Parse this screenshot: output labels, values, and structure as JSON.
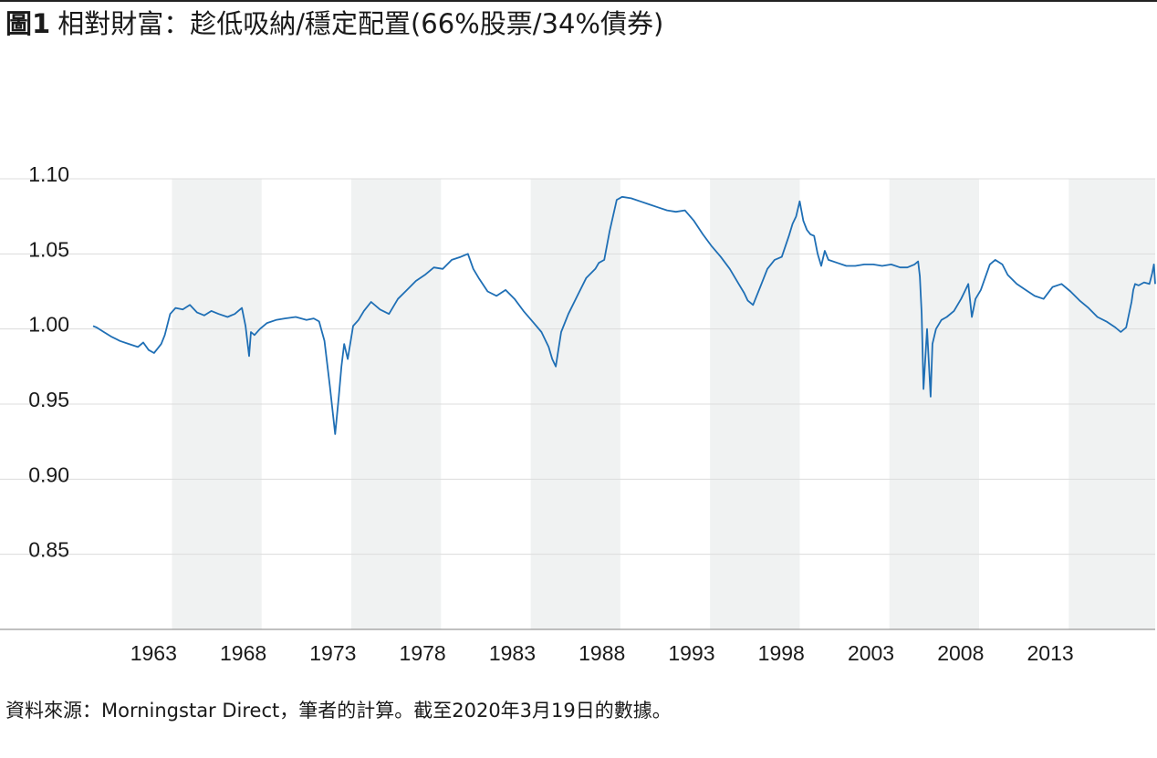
{
  "header": {
    "figure_label": "圖1",
    "title": "相對財富：趁低吸納/穩定配置(66%股票/34%債券)"
  },
  "footer": {
    "source": "資料來源：Morningstar Direct，筆者的計算。截至2020年3月19日的數據。"
  },
  "colors": {
    "line": "#1f6fb5",
    "shade": "#f0f2f2",
    "grid": "#dcdcdc",
    "axis": "#9a9a9a",
    "text": "#1a1a1a"
  },
  "chart_data": {
    "type": "line",
    "title": "相對財富：趁低吸納/穩定配置(66%股票/34%債券)",
    "xlabel": "",
    "ylabel": "",
    "xlim": [
      1961.0,
      2020.22
    ],
    "ylim": [
      0.8,
      1.1
    ],
    "ytick_values": [
      0.85,
      0.9,
      0.95,
      1.0,
      1.05,
      1.1
    ],
    "ytick_labels": [
      "0.85",
      "0.90",
      "0.95",
      "1.00",
      "1.05",
      "1.10"
    ],
    "xtick_values": [
      1963,
      1968,
      1973,
      1978,
      1983,
      1988,
      1993,
      1998,
      2003,
      2008,
      2013
    ],
    "xtick_labels": [
      "1963",
      "1968",
      "1973",
      "1978",
      "1983",
      "1988",
      "1993",
      "1998",
      "2003",
      "2008",
      "2013"
    ],
    "grid": "horizontal",
    "legend": "none",
    "shaded_periods": [
      [
        1965.4,
        1970.4
      ],
      [
        1975.4,
        1980.4
      ],
      [
        1985.4,
        1990.4
      ],
      [
        1995.4,
        2000.4
      ],
      [
        2005.4,
        2010.4
      ],
      [
        2015.4,
        2020.22
      ]
    ],
    "series": [
      {
        "x": [
          1961.0,
          1961.2,
          1961.6,
          1962.0,
          1962.5,
          1963.0,
          1963.5,
          1963.8,
          1964.1,
          1964.4,
          1964.6,
          1964.8,
          1965.0,
          1965.3,
          1965.6,
          1966.0,
          1966.4,
          1966.8,
          1967.2,
          1967.6,
          1968.0,
          1968.5,
          1968.9,
          1969.3,
          1969.5,
          1969.7,
          1969.8,
          1970.0,
          1970.3,
          1970.7,
          1971.2,
          1971.7,
          1972.3,
          1972.9,
          1973.3,
          1973.6,
          1973.9,
          1974.2,
          1974.5,
          1974.7,
          1974.85,
          1975.0,
          1975.2,
          1975.5,
          1975.8,
          1976.1,
          1976.5,
          1977.0,
          1977.5,
          1978.0,
          1978.5,
          1979.0,
          1979.5,
          1980.0,
          1980.5,
          1981.0,
          1981.5,
          1981.9,
          1982.2,
          1982.5,
          1983.0,
          1983.5,
          1984.0,
          1984.5,
          1985.0,
          1985.5,
          1986.0,
          1986.4,
          1986.6,
          1986.8,
          1987.1,
          1987.5,
          1988.0,
          1988.5,
          1989.0,
          1989.2,
          1989.5,
          1989.8,
          1990.2,
          1990.5,
          1991.0,
          1991.5,
          1992.0,
          1992.5,
          1993.0,
          1993.5,
          1994.0,
          1994.5,
          1995.0,
          1995.5,
          1996.0,
          1996.5,
          1997.0,
          1997.3,
          1997.5,
          1997.8,
          1998.2,
          1998.6,
          1999.0,
          1999.4,
          1999.8,
          2000.0,
          2000.2,
          2000.4,
          2000.6,
          2000.8,
          2001.0,
          2001.2,
          2001.4,
          2001.6,
          2001.8,
          2002.0,
          2002.5,
          2003.0,
          2003.5,
          2004.0,
          2004.5,
          2005.0,
          2005.5,
          2006.0,
          2006.4,
          2006.8,
          2007.0,
          2007.1,
          2007.2,
          2007.3,
          2007.5,
          2007.7,
          2007.8,
          2008.0,
          2008.3,
          2008.6,
          2009.0,
          2009.4,
          2009.6,
          2009.8,
          2010.0,
          2010.2,
          2010.5,
          2011.0,
          2011.3,
          2011.7,
          2012.0,
          2012.5,
          2013.0,
          2013.5,
          2014.0,
          2014.5,
          2015.0,
          2015.5,
          2016.0,
          2016.5,
          2017.0,
          2017.5,
          2018.0,
          2018.3,
          2018.6,
          2018.9,
          2019.0,
          2019.1,
          2019.3,
          2019.6,
          2019.9,
          2020.05,
          2020.15,
          2020.22
        ],
        "y": [
          1.002,
          1.001,
          0.998,
          0.995,
          0.992,
          0.99,
          0.988,
          0.991,
          0.986,
          0.984,
          0.987,
          0.99,
          0.996,
          1.01,
          1.014,
          1.013,
          1.016,
          1.011,
          1.009,
          1.012,
          1.01,
          1.008,
          1.01,
          1.014,
          1.002,
          0.982,
          0.998,
          0.996,
          1.0,
          1.004,
          1.006,
          1.007,
          1.008,
          1.006,
          1.007,
          1.005,
          0.992,
          0.962,
          0.93,
          0.955,
          0.975,
          0.99,
          0.98,
          1.002,
          1.006,
          1.012,
          1.018,
          1.013,
          1.01,
          1.02,
          1.026,
          1.032,
          1.036,
          1.041,
          1.04,
          1.046,
          1.048,
          1.05,
          1.04,
          1.034,
          1.025,
          1.022,
          1.026,
          1.02,
          1.012,
          1.005,
          0.998,
          0.988,
          0.98,
          0.975,
          0.998,
          1.01,
          1.022,
          1.034,
          1.04,
          1.044,
          1.046,
          1.065,
          1.086,
          1.088,
          1.087,
          1.085,
          1.083,
          1.081,
          1.079,
          1.078,
          1.079,
          1.072,
          1.063,
          1.055,
          1.048,
          1.04,
          1.03,
          1.024,
          1.019,
          1.016,
          1.028,
          1.04,
          1.046,
          1.048,
          1.062,
          1.07,
          1.075,
          1.085,
          1.072,
          1.066,
          1.063,
          1.062,
          1.05,
          1.042,
          1.052,
          1.046,
          1.044,
          1.042,
          1.042,
          1.043,
          1.043,
          1.042,
          1.043,
          1.041,
          1.041,
          1.043,
          1.045,
          1.035,
          1.01,
          0.96,
          1.0,
          0.955,
          0.99,
          1.0,
          1.006,
          1.008,
          1.012,
          1.02,
          1.025,
          1.03,
          1.008,
          1.02,
          1.026,
          1.043,
          1.046,
          1.043,
          1.036,
          1.03,
          1.026,
          1.022,
          1.02,
          1.028,
          1.03,
          1.025,
          1.019,
          1.014,
          1.008,
          1.005,
          1.001,
          0.998,
          1.001,
          1.018,
          1.026,
          1.03,
          1.029,
          1.031,
          1.03,
          1.037,
          1.043,
          1.03
        ]
      }
    ]
  }
}
